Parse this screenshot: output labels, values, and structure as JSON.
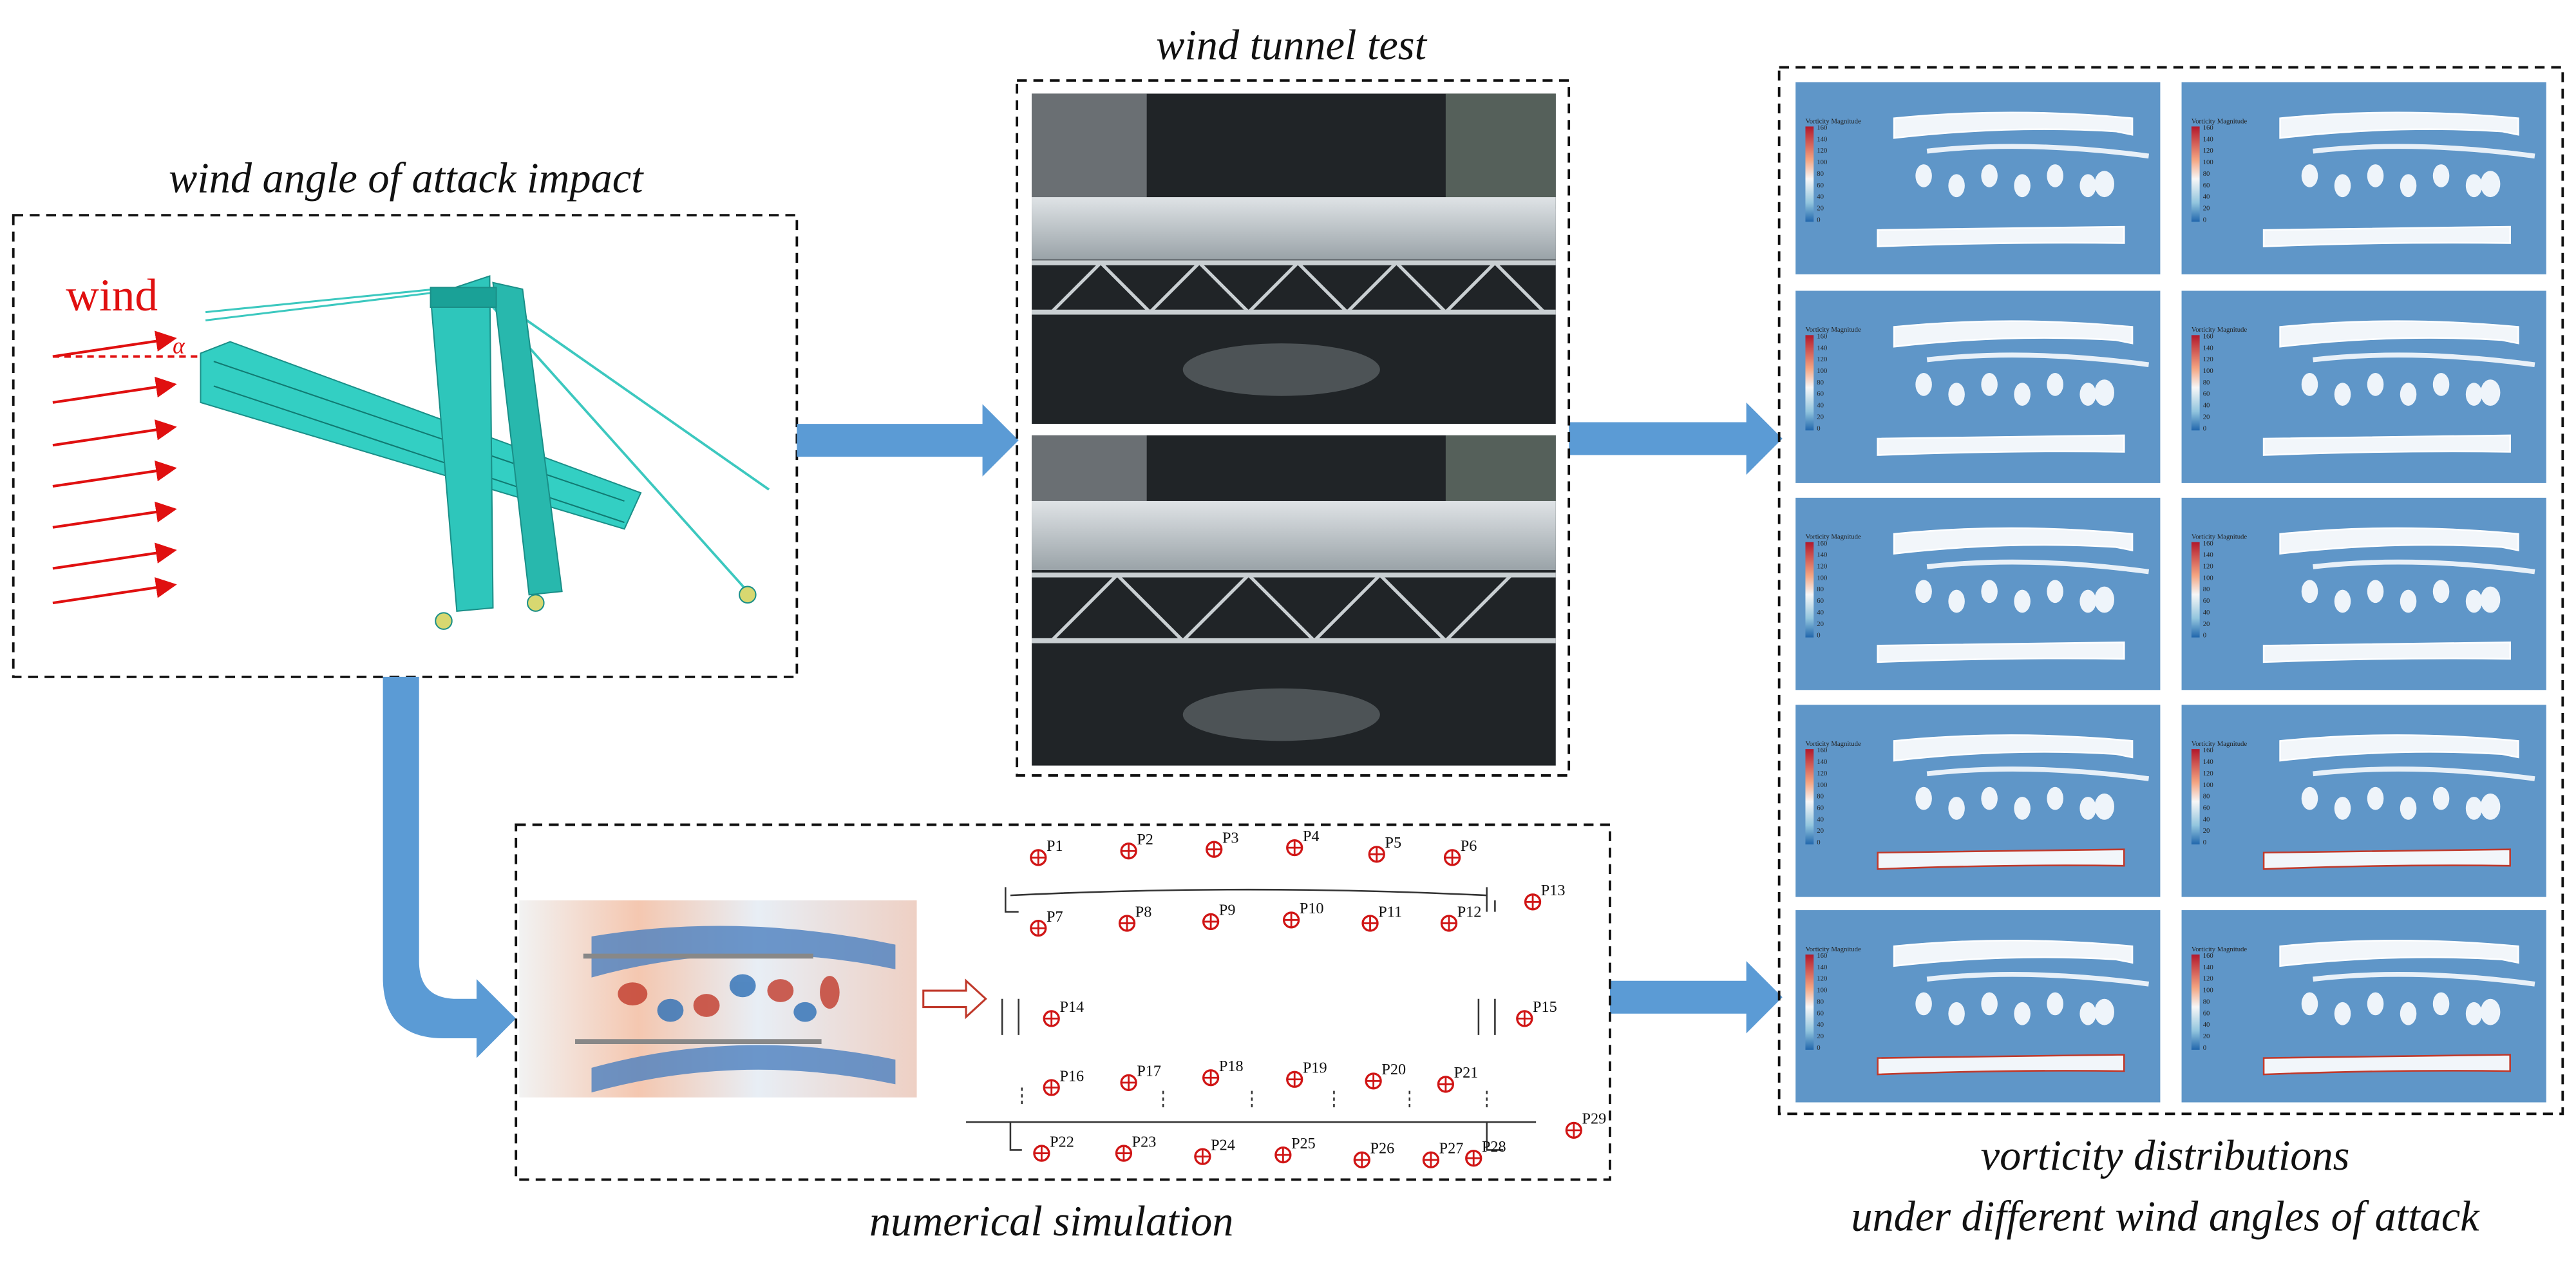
{
  "left": {
    "title": "wind angle of attack impact",
    "wind_label": "wind",
    "angle_label": "α"
  },
  "tunnel": {
    "title": "wind tunnel test"
  },
  "simulation": {
    "title": "numerical simulation",
    "probes": [
      "P1",
      "P2",
      "P3",
      "P4",
      "P5",
      "P6",
      "P7",
      "P8",
      "P9",
      "P10",
      "P11",
      "P12",
      "P13",
      "P14",
      "P15",
      "P16",
      "P17",
      "P18",
      "P19",
      "P20",
      "P21",
      "P22",
      "P23",
      "P24",
      "P25",
      "P26",
      "P27",
      "P28",
      "P29"
    ]
  },
  "vorticity": {
    "title_lines": [
      "vorticity distributions",
      "under different wind angles of attack"
    ],
    "colorbar": {
      "title": "Vorticity Magnitude",
      "ticks": [
        "160",
        "140",
        "120",
        "100",
        "80",
        "60",
        "40",
        "20",
        "0"
      ]
    }
  }
}
